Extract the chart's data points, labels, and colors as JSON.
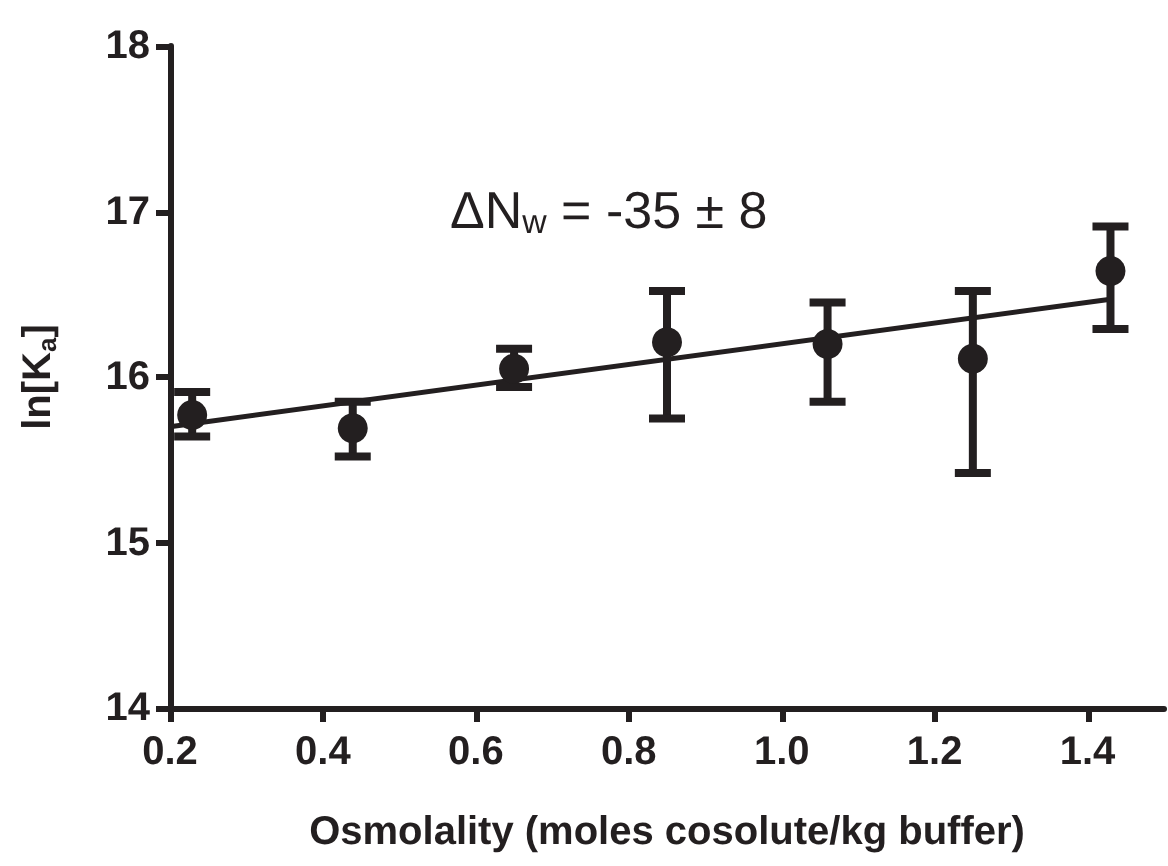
{
  "chart_data": {
    "type": "scatter",
    "xlabel": "Osmolality (moles cosolute/kg buffer)",
    "ylabel": "ln[K$_{a}$]",
    "annotations": [
      "ΔN$_{w}$ = -35 ± 8"
    ],
    "xlim": [
      0.2,
      1.5
    ],
    "xticks": [
      0.2,
      0.4,
      0.6,
      0.8,
      {
        "value": 1.0,
        "label": "1.0"
      },
      1.2,
      1.4
    ],
    "ylim": [
      14,
      18
    ],
    "yticks": [
      14,
      15,
      16,
      17,
      18
    ],
    "grid": false,
    "marker": "circle",
    "series": [
      {
        "color": "#231f20",
        "x": [
          0.229,
          0.439,
          0.65,
          0.85,
          1.06,
          1.25,
          1.43
        ],
        "values": [
          15.77,
          15.69,
          16.05,
          16.21,
          16.2,
          16.11,
          16.64
        ],
        "errors": [
          [
            15.64,
            15.91
          ],
          [
            15.52,
            15.85
          ],
          [
            15.94,
            16.17
          ],
          [
            15.75,
            16.52
          ],
          [
            15.85,
            16.45
          ],
          [
            15.42,
            16.52
          ],
          [
            16.29,
            16.91
          ]
        ]
      },
      {
        "type": "line",
        "color": "#231f20",
        "x": [
          0.2,
          1.43
        ],
        "values": [
          15.7,
          16.47
        ],
        "marker": "none",
        "line_style": "solid"
      }
    ]
  }
}
